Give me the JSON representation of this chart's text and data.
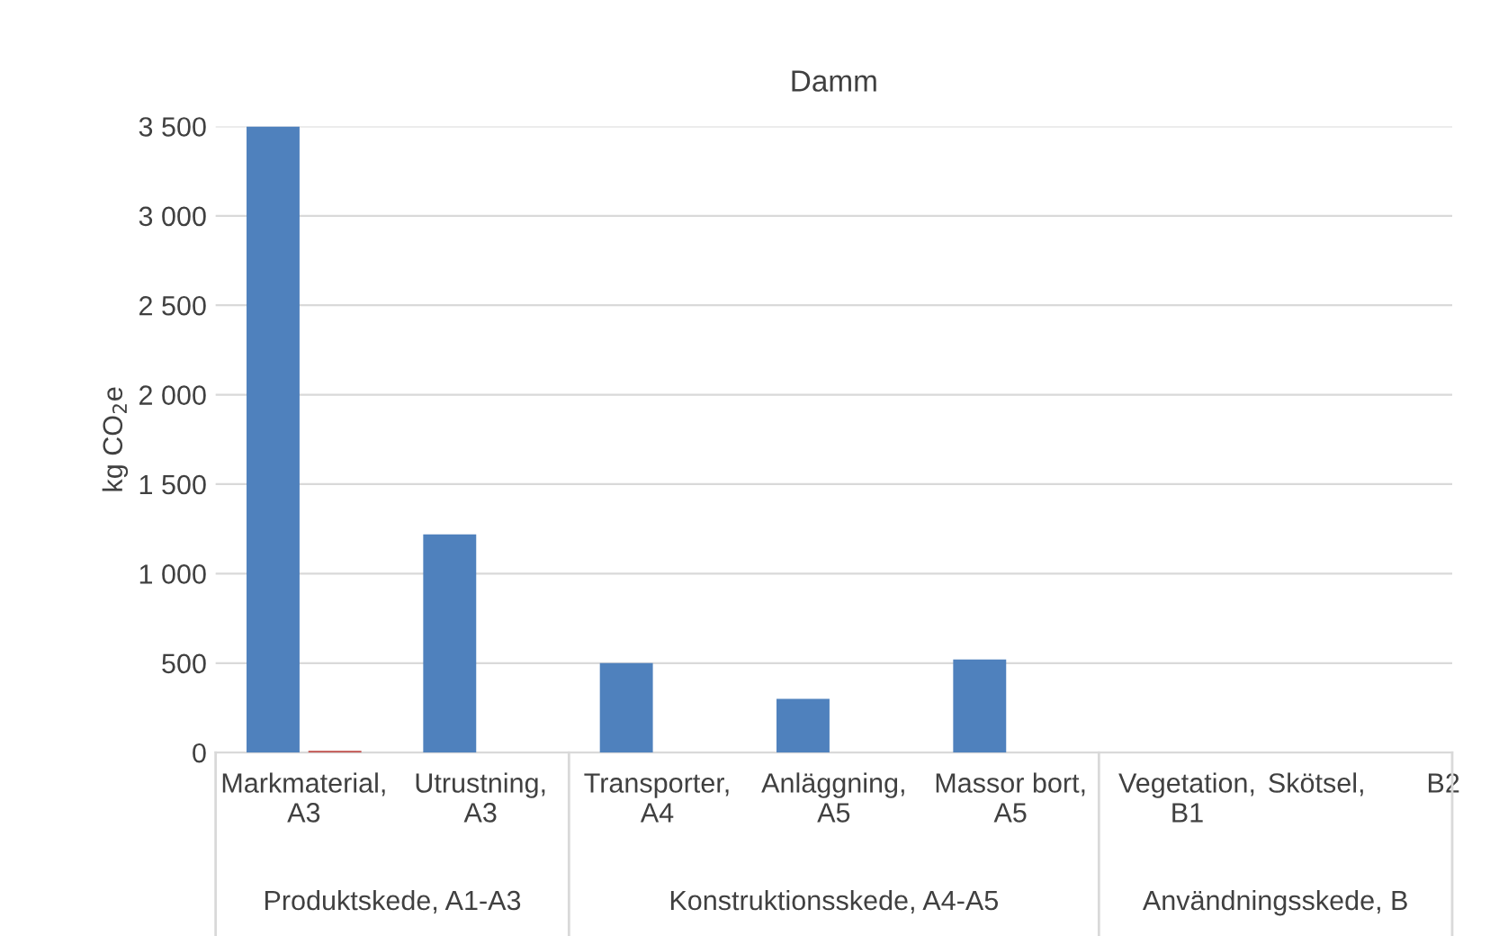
{
  "chart_data": {
    "type": "bar",
    "title": "Damm",
    "ylabel": "kg CO$_{2}$e",
    "categories": [
      "Markmaterial,\nA3",
      "Utrustning,\nA3",
      "Transporter,\nA4",
      "Anläggning,\nA5",
      "Massor bort,\nA5",
      "Vegetation,\nB1",
      "Skötsel,        B2"
    ],
    "series": [
      {
        "color": "#4f81bd",
        "values": [
          3500,
          1220,
          500,
          300,
          520,
          null,
          null
        ]
      },
      {
        "color": "#c0504d",
        "values": [
          10,
          null,
          null,
          null,
          null,
          null,
          null
        ]
      }
    ],
    "ylim": [
      0,
      3500
    ],
    "yticks": [
      {
        "value": 0,
        "label": "0"
      },
      {
        "value": 500,
        "label": "500"
      },
      {
        "value": 1000,
        "label": "1 000"
      },
      {
        "value": 1500,
        "label": "1 500"
      },
      {
        "value": 2000,
        "label": "2 000"
      },
      {
        "value": 2500,
        "label": "2 500"
      },
      {
        "value": 3000,
        "label": "3 000"
      },
      {
        "value": 3500,
        "label": "3 500"
      }
    ],
    "grid": "y",
    "legend": false,
    "annotations": [
      "Produktskede, A1-A3",
      "Konstruktionsskede, A4-A5",
      "Användningsskede, B"
    ]
  }
}
